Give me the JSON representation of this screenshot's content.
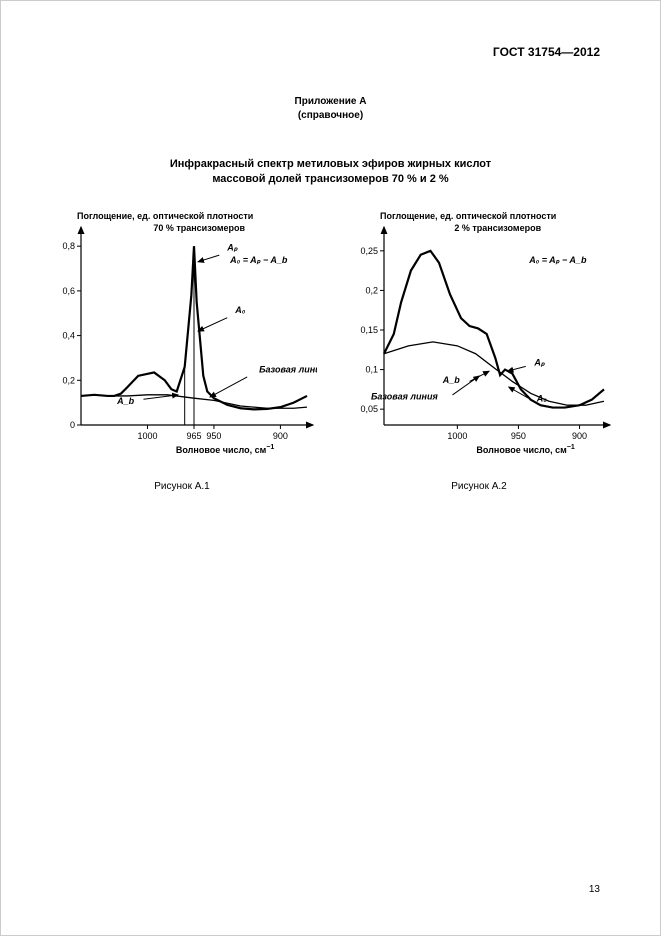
{
  "header": {
    "standard": "ГОСТ 31754—2012"
  },
  "appendix": {
    "line1": "Приложение А",
    "line2": "(справочное)"
  },
  "title": {
    "line1": "Инфракрасный спектр метиловых эфиров жирных кислот",
    "line2": "массовой долей трансизомеров 70 % и 2 %"
  },
  "page_number": "13",
  "chart_a1": {
    "type": "line",
    "caption": "Рисунок А.1",
    "y_title": "Поглощение, ед. оптической плотности",
    "series_label": "70 % трансизомеров",
    "x_title": "Волновое число, см",
    "x_title_sup": "−1",
    "formula": "A₀ = Aₚ − A_b",
    "label_Ap": "Aₚ",
    "label_A0": "A₀",
    "label_Ab": "A_b",
    "baseline_label": "Базовая линия",
    "y_ticks": [
      0,
      0.2,
      0.4,
      0.6,
      0.8
    ],
    "y_lim": [
      0,
      0.85
    ],
    "x_ticks": [
      1000,
      965,
      950,
      900
    ],
    "x_lim": [
      1050,
      880
    ],
    "font_size_axis": 9,
    "font_size_label": 9,
    "stroke_color": "#000000",
    "background": "#ffffff",
    "line_width_curve": 2.2,
    "line_width_axis": 1.2,
    "curve_x": [
      1050,
      1040,
      1030,
      1025,
      1020,
      1015,
      1007,
      995,
      987,
      982,
      978,
      972,
      967,
      965,
      963,
      958,
      955,
      950,
      940,
      930,
      920,
      910,
      900,
      890,
      880
    ],
    "curve_y": [
      0.13,
      0.135,
      0.13,
      0.13,
      0.14,
      0.17,
      0.22,
      0.235,
      0.2,
      0.16,
      0.15,
      0.26,
      0.58,
      0.8,
      0.55,
      0.22,
      0.15,
      0.12,
      0.09,
      0.075,
      0.07,
      0.072,
      0.08,
      0.1,
      0.13
    ],
    "baseline_x": [
      1030,
      1015,
      1000,
      985,
      965,
      950,
      930,
      910,
      890,
      880
    ],
    "baseline_y": [
      0.13,
      0.13,
      0.135,
      0.135,
      0.12,
      0.11,
      0.085,
      0.075,
      0.075,
      0.08
    ],
    "drop_lines": [
      {
        "x": 972,
        "y0": 0,
        "y1": 0.26
      },
      {
        "x": 965,
        "y0": 0,
        "y1": 0.8
      }
    ],
    "annotations": {
      "Ap_arrow": {
        "from": [
          946,
          0.76
        ],
        "to": [
          962,
          0.73
        ]
      },
      "A0_arrow": {
        "from": [
          940,
          0.48
        ],
        "to": [
          962,
          0.42
        ]
      },
      "Ab_arrow": {
        "from": [
          1003,
          0.115
        ],
        "to": [
          977,
          0.135
        ]
      },
      "baseline_arrow": {
        "from": [
          925,
          0.215
        ],
        "to": [
          953,
          0.125
        ]
      }
    }
  },
  "chart_a2": {
    "type": "line",
    "caption": "Рисунок А.2",
    "y_title": "Поглощение, ед. оптической плотности",
    "series_label": "2 % трансизомеров",
    "x_title": "Волновое число, см",
    "x_title_sup": "−1",
    "formula": "A₀ = Aₚ − A_b",
    "label_Ap": "Aₚ",
    "label_A0": "A₀",
    "label_Ab": "A_b",
    "baseline_label": "Базовая линия",
    "y_ticks": [
      0.05,
      0.1,
      0.15,
      0.2,
      0.25
    ],
    "y_lim": [
      0.03,
      0.27
    ],
    "x_ticks": [
      1000,
      950,
      900
    ],
    "x_lim": [
      1060,
      880
    ],
    "font_size_axis": 9,
    "font_size_label": 9,
    "stroke_color": "#000000",
    "background": "#ffffff",
    "line_width_curve": 2.2,
    "line_width_axis": 1.2,
    "curve_x": [
      1060,
      1052,
      1046,
      1038,
      1030,
      1022,
      1015,
      1006,
      997,
      990,
      983,
      976,
      969,
      965,
      961,
      955,
      948,
      940,
      932,
      922,
      912,
      900,
      890,
      880
    ],
    "curve_y": [
      0.12,
      0.145,
      0.185,
      0.225,
      0.245,
      0.25,
      0.235,
      0.195,
      0.165,
      0.155,
      0.152,
      0.145,
      0.115,
      0.093,
      0.1,
      0.095,
      0.075,
      0.062,
      0.055,
      0.052,
      0.052,
      0.055,
      0.062,
      0.075
    ],
    "baseline_x": [
      1060,
      1040,
      1020,
      1000,
      985,
      968,
      955,
      940,
      925,
      910,
      895,
      880
    ],
    "baseline_y": [
      0.12,
      0.13,
      0.135,
      0.13,
      0.12,
      0.1,
      0.085,
      0.07,
      0.06,
      0.055,
      0.055,
      0.06
    ],
    "annotations": {
      "Ap_arrow": {
        "from": [
          944,
          0.104
        ],
        "to": [
          959,
          0.098
        ]
      },
      "A0_arrow": {
        "from": [
          942,
          0.064
        ],
        "to": [
          958,
          0.078
        ]
      },
      "Ab_arrow": {
        "from": [
          990,
          0.085
        ],
        "to": [
          974,
          0.098
        ]
      },
      "baseline_arrow": {
        "from": [
          1004,
          0.068
        ],
        "to": [
          982,
          0.092
        ]
      }
    }
  }
}
